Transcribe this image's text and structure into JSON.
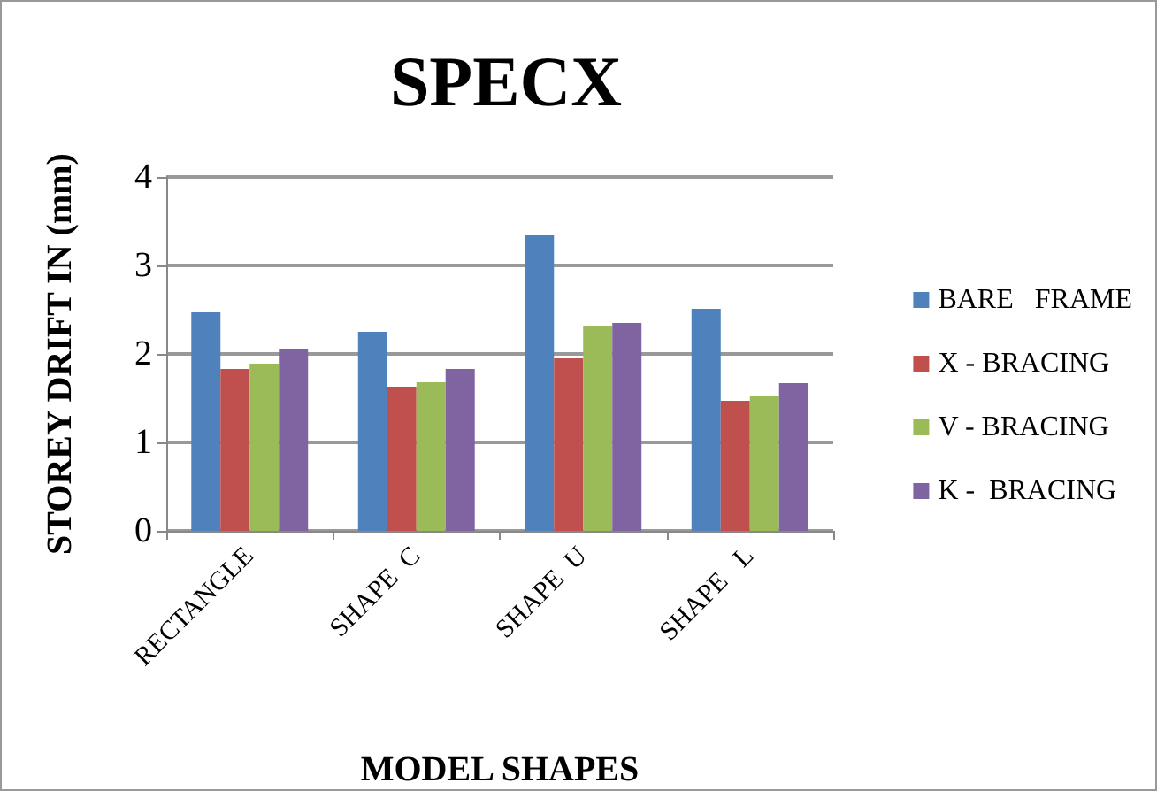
{
  "chart_data": {
    "type": "bar",
    "title": "SPECX",
    "xlabel": "MODEL SHAPES",
    "ylabel": "STOREY DRIFT IN (mm)",
    "categories": [
      "RECTANGLE",
      "SHAPE  C",
      "SHAPE  U",
      "SHAPE   L"
    ],
    "series": [
      {
        "name": "BARE   FRAME",
        "color": "#4f81bd",
        "values": [
          2.47,
          2.25,
          3.34,
          2.51
        ]
      },
      {
        "name": "X - BRACING",
        "color": "#c0504d",
        "values": [
          1.83,
          1.63,
          1.95,
          1.47
        ]
      },
      {
        "name": "V - BRACING",
        "color": "#9bbb59",
        "values": [
          1.89,
          1.68,
          2.31,
          1.53
        ]
      },
      {
        "name": "K -  BRACING",
        "color": "#8064a2",
        "values": [
          2.05,
          1.83,
          2.35,
          1.67
        ]
      }
    ],
    "ylim": [
      0,
      4
    ],
    "yticks": [
      0,
      1,
      2,
      3,
      4
    ],
    "grid": "y",
    "legend": "right"
  }
}
